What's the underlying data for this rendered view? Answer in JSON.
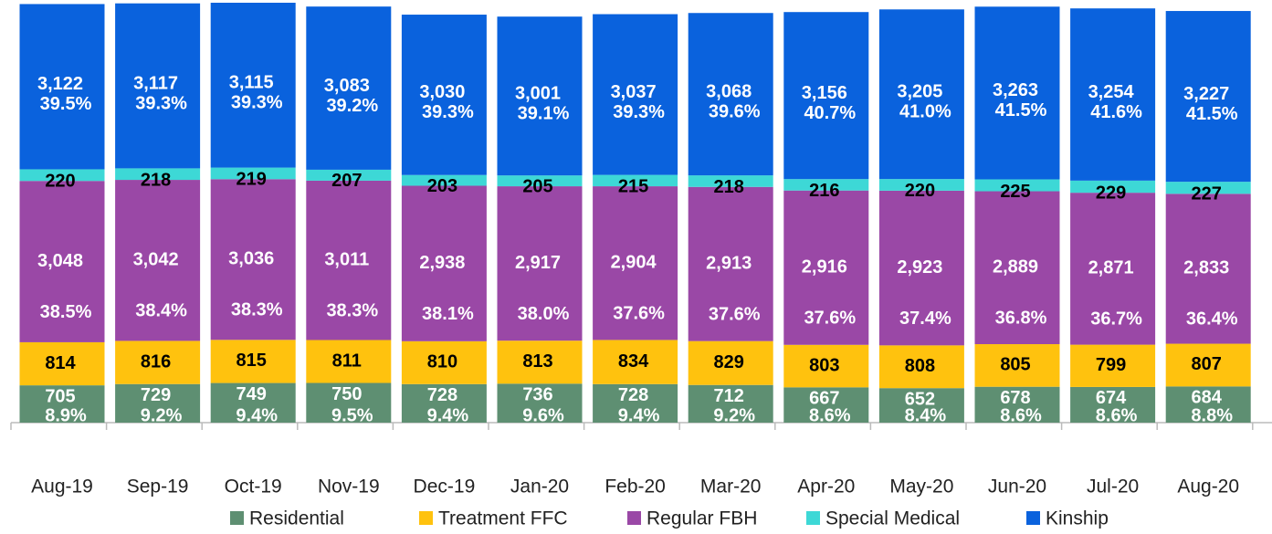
{
  "chart_data": {
    "type": "stacked-bar",
    "categories": [
      "Aug-19",
      "Sep-19",
      "Oct-19",
      "Nov-19",
      "Dec-19",
      "Jan-20",
      "Feb-20",
      "Mar-20",
      "Apr-20",
      "May-20",
      "Jun-20",
      "Jul-20",
      "Aug-20"
    ],
    "series": [
      {
        "name": "Residential",
        "color": "#5e8f72",
        "label_color": "#ffffff",
        "values": [
          705,
          729,
          749,
          750,
          728,
          736,
          728,
          712,
          667,
          652,
          678,
          674,
          684
        ],
        "percent_labels": [
          "8.9%",
          "9.2%",
          "9.4%",
          "9.5%",
          "9.4%",
          "9.6%",
          "9.4%",
          "9.2%",
          "8.6%",
          "8.4%",
          "8.6%",
          "8.6%",
          "8.8%"
        ]
      },
      {
        "name": "Treatment FFC",
        "color": "#ffc20e",
        "label_color": "#000000",
        "values": [
          814,
          816,
          815,
          811,
          810,
          813,
          834,
          829,
          803,
          808,
          805,
          799,
          807
        ]
      },
      {
        "name": "Regular FBH",
        "color": "#9a48a6",
        "label_color": "#ffffff",
        "values": [
          3048,
          3042,
          3036,
          3011,
          2938,
          2917,
          2904,
          2913,
          2916,
          2923,
          2889,
          2871,
          2833
        ],
        "value_labels": [
          "3,048",
          "3,042",
          "3,036",
          "3,011",
          "2,938",
          "2,917",
          "2,904",
          "2,913",
          "2,916",
          "2,923",
          "2,889",
          "2,871",
          "2,833"
        ],
        "percent_labels": [
          "38.5%",
          "38.4%",
          "38.3%",
          "38.3%",
          "38.1%",
          "38.0%",
          "37.6%",
          "37.6%",
          "37.6%",
          "37.4%",
          "36.8%",
          "36.7%",
          "36.4%"
        ]
      },
      {
        "name": "Special Medical",
        "color": "#3dd8d6",
        "label_color": "#000000",
        "values": [
          220,
          218,
          219,
          207,
          203,
          205,
          215,
          218,
          216,
          220,
          225,
          229,
          227
        ]
      },
      {
        "name": "Kinship",
        "color": "#0a62dd",
        "label_color": "#ffffff",
        "values": [
          3122,
          3117,
          3115,
          3083,
          3030,
          3001,
          3037,
          3068,
          3156,
          3205,
          3263,
          3254,
          3227
        ],
        "value_labels": [
          "3,122",
          "3,117",
          "3,115",
          "3,083",
          "3,030",
          "3,001",
          "3,037",
          "3,068",
          "3,156",
          "3,205",
          "3,263",
          "3,254",
          "3,227"
        ],
        "percent_labels": [
          "39.5%",
          "39.3%",
          "39.3%",
          "39.2%",
          "39.3%",
          "39.1%",
          "39.3%",
          "39.6%",
          "40.7%",
          "41.0%",
          "41.5%",
          "41.6%",
          "41.5%"
        ]
      }
    ]
  }
}
